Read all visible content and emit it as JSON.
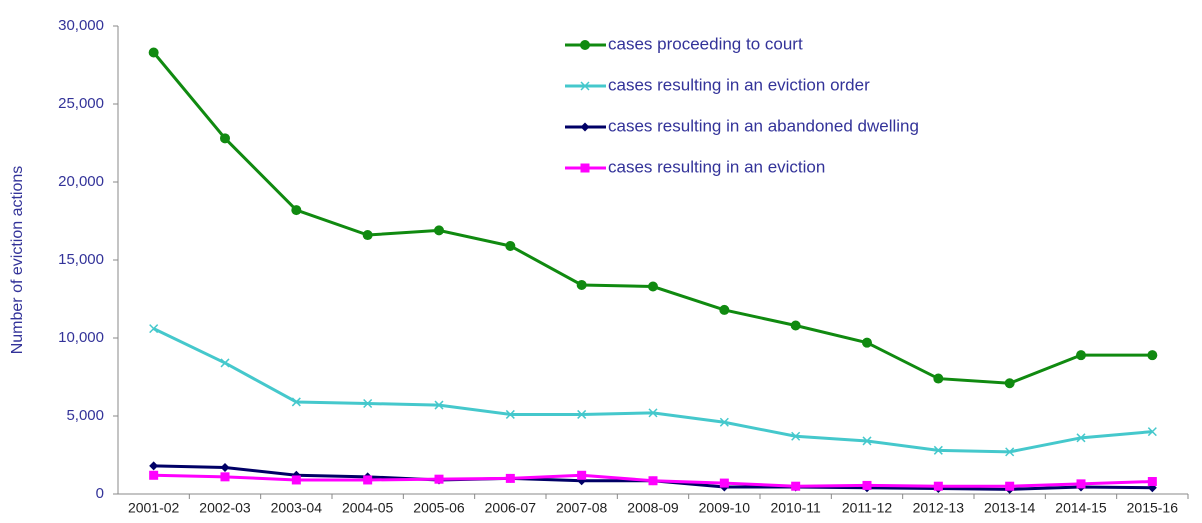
{
  "chart_data": {
    "type": "line",
    "y_label": "Number of eviction actions",
    "categories": [
      "2001-02",
      "2002-03",
      "2003-04",
      "2004-05",
      "2005-06",
      "2006-07",
      "2007-08",
      "2008-09",
      "2009-10",
      "2010-11",
      "2011-12",
      "2012-13",
      "2013-14",
      "2014-15",
      "2015-16"
    ],
    "series": [
      {
        "name": "cases proceeding to court",
        "color": "#108a10",
        "marker": "circle",
        "values": [
          28300,
          22800,
          18200,
          16600,
          16900,
          15900,
          13400,
          13300,
          11800,
          10800,
          9700,
          7400,
          7100,
          8900,
          8900
        ]
      },
      {
        "name": "cases resulting in an eviction order",
        "color": "#45c8cc",
        "marker": "x",
        "values": [
          10600,
          8400,
          5900,
          5800,
          5700,
          5100,
          5100,
          5200,
          4600,
          3700,
          3400,
          2800,
          2700,
          3600,
          4000
        ]
      },
      {
        "name": "cases resulting in an abandoned dwelling",
        "color": "#000066",
        "marker": "diamond",
        "values": [
          1800,
          1700,
          1200,
          1100,
          900,
          1000,
          850,
          850,
          450,
          450,
          400,
          350,
          300,
          450,
          400
        ]
      },
      {
        "name": "cases resulting in an eviction",
        "color": "#ff00ff",
        "marker": "square",
        "values": [
          1200,
          1100,
          900,
          900,
          950,
          1000,
          1200,
          850,
          700,
          500,
          550,
          500,
          500,
          650,
          800
        ]
      }
    ],
    "ylim": [
      0,
      30000
    ],
    "yticks": [
      0,
      {
        "value": 5000,
        "label": "5,000"
      },
      {
        "value": 10000,
        "label": "10,000"
      },
      {
        "value": 15000,
        "label": "15,000"
      },
      {
        "value": 20000,
        "label": "20,000"
      },
      {
        "value": 25000,
        "label": "25,000"
      },
      {
        "value": 30000,
        "label": "30,000"
      }
    ],
    "grid": false,
    "legend": "top"
  }
}
